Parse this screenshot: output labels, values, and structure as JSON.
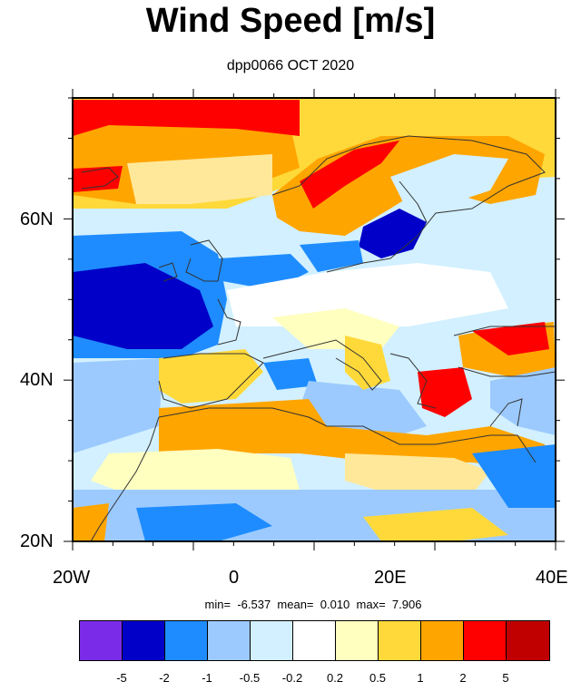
{
  "title": "Wind Speed [m/s]",
  "subtitle": "dpp0066 OCT 2020",
  "axes": {
    "lat_ticks": [
      "60N",
      "40N",
      "20N"
    ],
    "lon_ticks": [
      "20W",
      "0",
      "20E",
      "40E"
    ]
  },
  "stats": {
    "min": "-6.537",
    "mean": "0.010",
    "max": "7.906"
  },
  "colorbar": {
    "colors": [
      "#7a2be8",
      "#0000c8",
      "#1e8cff",
      "#9ccaff",
      "#d2f0ff",
      "#ffffff",
      "#ffffc0",
      "#ffd93a",
      "#ffa500",
      "#ff0000",
      "#c00000"
    ],
    "labels": [
      "-5",
      "-2",
      "-1",
      "-0.5",
      "-0.2",
      "0.2",
      "0.5",
      "1",
      "2",
      "5"
    ]
  }
}
